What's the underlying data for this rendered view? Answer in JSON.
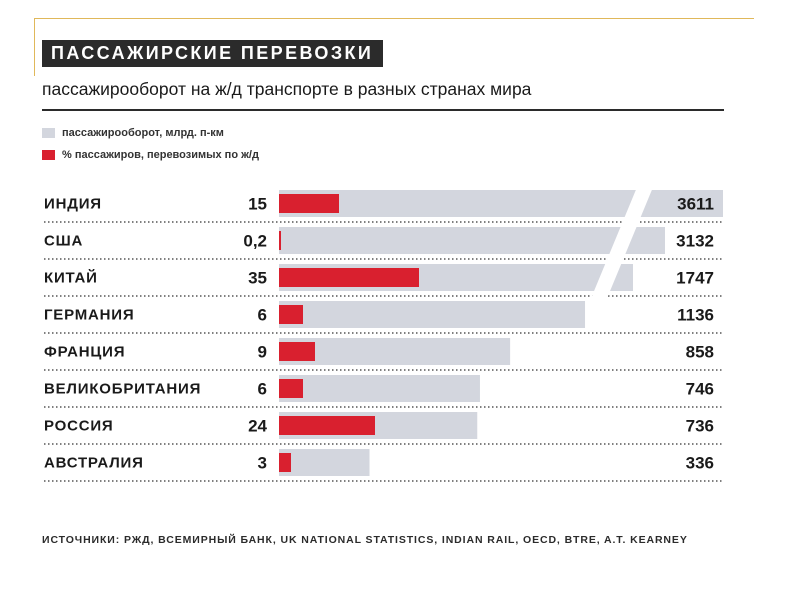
{
  "title": "ПАССАЖИРСКИЕ ПЕРЕВОЗКИ",
  "subtitle": "пассажирооборот на ж/д транспорте в разных странах мира",
  "legend": [
    {
      "label": "пассажирооборот, млрд. п-км",
      "color": "#d3d6de"
    },
    {
      "label": "% пассажиров, перевозимых по ж/д",
      "color": "#d9202f"
    }
  ],
  "sources": "ИСТОЧНИКИ: РЖД, ВСЕМИРНЫЙ БАНК, UK NATIONAL STATISTICS, INDIAN RAIL, OECD, BTRE, A.T. KEARNEY",
  "chart_data": {
    "type": "bar",
    "categories": [
      "ИНДИЯ",
      "США",
      "КИТАЙ",
      "ГЕРМАНИЯ",
      "ФРАНЦИЯ",
      "ВЕЛИКОБРИТАНИЯ",
      "РОССИЯ",
      "АВСТРАЛИЯ"
    ],
    "series": [
      {
        "name": "пассажирооборот, млрд. п-км",
        "values": [
          3611,
          3132,
          1747,
          1136,
          858,
          746,
          736,
          336
        ],
        "labels": [
          "3611",
          "3132",
          "1747",
          "1136",
          "858",
          "746",
          "736",
          "336"
        ],
        "color": "#d3d6de"
      },
      {
        "name": "% пассажиров, перевозимых по ж/д",
        "values": [
          15,
          0.2,
          35,
          6,
          9,
          6,
          24,
          3
        ],
        "labels": [
          "15",
          "0,2",
          "35",
          "6",
          "9",
          "6",
          "24",
          "3"
        ],
        "color": "#d9202f"
      }
    ],
    "axis_break": true,
    "gridlines": false,
    "legend_position": "top-left"
  }
}
